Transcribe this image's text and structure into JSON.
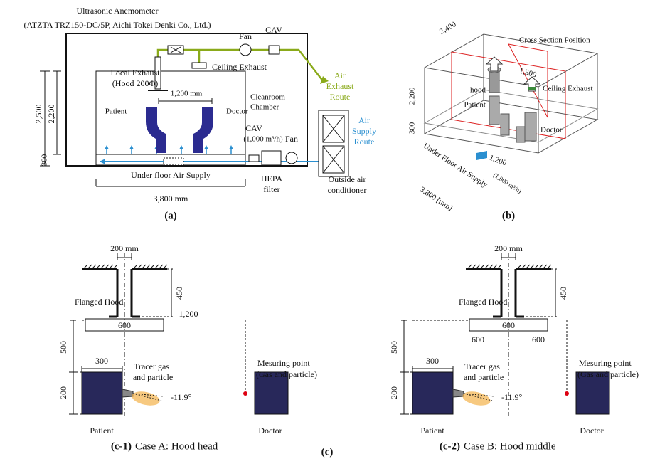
{
  "panel_a": {
    "anemometer": "Ultrasonic Anemometer",
    "anemometer_model": "(ATZTA TRZ150-DC/5P, Aichi Tokei Denki Co., Ltd.)",
    "fan_top": "Fan",
    "cav_top": "CAV",
    "local_exhaust": "Local Exhaust",
    "hood_size": "(Hood  200Φ)",
    "ceiling_exhaust": "Ceiling Exhaust",
    "exhaust_route": [
      "Air",
      "Exhaust",
      "Route"
    ],
    "width_1200": "1,200 mm",
    "chamber": [
      "Cleanroom",
      "Chamber"
    ],
    "patient": "Patient",
    "doctor": "Doctor",
    "cav_bottom": "CAV",
    "cav_flow": "(1,000 m³/h)",
    "fan_bottom": "Fan",
    "supply_route": [
      "Air",
      "Supply",
      "Route"
    ],
    "height_total": "2,500",
    "height_room": "2,200",
    "height_floor": "300",
    "underfloor": "Under floor Air Supply",
    "hepa": [
      "HEPA",
      "filter"
    ],
    "outside_air": [
      "Outside air",
      "conditioner"
    ],
    "width_3800": "3,800 mm",
    "caption": "(a)"
  },
  "panel_b": {
    "depth": "2,400",
    "cross_section": "Cross Section Position",
    "offset_1500": "1,500",
    "hood": "hood",
    "ceiling_exhaust": "Ceiling Exhaust",
    "height_room": "2,200",
    "patient": "Patient",
    "doctor": "Doctor",
    "height_floor": "300",
    "spacing": "1,200",
    "underfloor": "Under Floor Air Supply",
    "flow": "(1,000 m³/h)",
    "length": "3,800 [mm]",
    "caption": "(b)"
  },
  "panel_c1": {
    "hood_width": "200 mm",
    "hood_height": "450",
    "hood_label": "Flanged Hood",
    "flange": "600",
    "distance": "1,200",
    "height_500": "500",
    "patient_width": "300",
    "patient_height": "200",
    "tracer": [
      "Tracer gas",
      "and particle"
    ],
    "angle": "-11.9°",
    "measuring": [
      "Mesuring point",
      "(Gas and particle)"
    ],
    "patient": "Patient",
    "doctor": "Doctor",
    "caption_id": "(c-1)",
    "caption": "Case A: Hood head"
  },
  "panel_c2": {
    "hood_width": "200 mm",
    "hood_height": "450",
    "hood_label": "Flanged Hood",
    "flange": "600",
    "distance_left": "600",
    "distance_right": "600",
    "height_500": "500",
    "patient_width": "300",
    "patient_height": "200",
    "tracer": [
      "Tracer gas",
      "and particle"
    ],
    "angle": "-11.9°",
    "measuring": [
      "Mesuring point",
      "(Gas and particle)"
    ],
    "patient": "Patient",
    "doctor": "Doctor",
    "caption_id": "(c-2)",
    "caption": "Case B: Hood middle"
  },
  "figure_caption": "(c)"
}
